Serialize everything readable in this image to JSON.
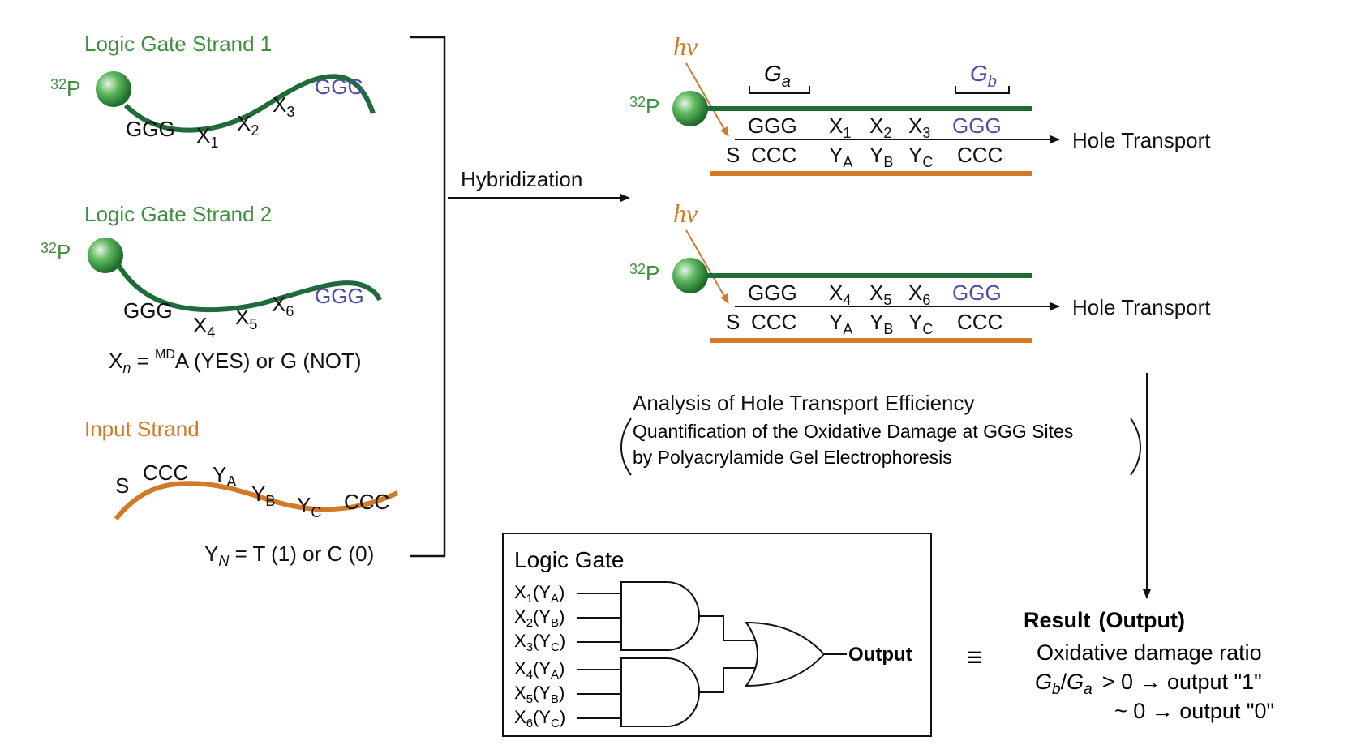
{
  "left": {
    "strand1": {
      "title": "Logic Gate Strand 1",
      "label32P": "32P",
      "seq": {
        "g_left": "GGG",
        "x1": "X1",
        "x2": "X2",
        "x3": "X3",
        "g_right": "GGG"
      }
    },
    "strand2": {
      "title": "Logic Gate Strand 2",
      "label32P": "32P",
      "seq": {
        "g_left": "GGG",
        "x4": "X4",
        "x5": "X5",
        "x6": "X6",
        "g_right": "GGG"
      }
    },
    "xn_def": {
      "pre": "X",
      "sub": "n",
      "eq": " = ",
      "sup": "MD",
      "post": "A (YES) or G (NOT)"
    },
    "input": {
      "title": "Input Strand",
      "seq": {
        "s": "S",
        "ccc_left": "CCC",
        "ya": "YA",
        "yb": "YB",
        "yc": "YC",
        "ccc_right": "CCC"
      }
    },
    "yn_def": {
      "pre": "Y",
      "sub": "N",
      "post": " = T (1) or C (0)"
    }
  },
  "hybridization": "Hybridization",
  "duplex1": {
    "hv": "hν",
    "label32P": "32P",
    "ga": {
      "main": "G",
      "sub": "a"
    },
    "gb": {
      "main": "G",
      "sub": "b"
    },
    "top": [
      "GGG",
      "X1",
      "X2",
      "X3",
      "GGG"
    ],
    "bottom": [
      "S",
      "CCC",
      "YA",
      "YB",
      "YC",
      "CCC"
    ],
    "transport": "Hole Transport"
  },
  "duplex2": {
    "hv": "hν",
    "label32P": "32P",
    "top": [
      "GGG",
      "X4",
      "X5",
      "X6",
      "GGG"
    ],
    "bottom": [
      "S",
      "CCC",
      "YA",
      "YB",
      "YC",
      "CCC"
    ],
    "transport": "Hole Transport"
  },
  "analysis": {
    "title": "Analysis of Hole Transport Efficiency",
    "line1": "Quantification of the Oxidative Damage at GGG Sites",
    "line2": "by Polyacrylamide Gel Electrophoresis"
  },
  "logic_gate": {
    "title": "Logic Gate",
    "inputs": [
      "X1(YA)",
      "X2(YB)",
      "X3(YC)",
      "X4(YA)",
      "X5(YB)",
      "X6(YC)"
    ],
    "output": "Output"
  },
  "equiv": "≡",
  "result": {
    "title": "Result",
    "title_paren": "(Output)",
    "line1": "Oxidative damage ratio",
    "ratio": "Gb/Ga",
    "cond1": "> 0 → output \"1\"",
    "cond2": "~ 0 → output \"0\""
  },
  "colors": {
    "green_strand": "#1f6b3a",
    "green_text": "#3e8f3e",
    "orange": "#d07a2a",
    "blue": "#4b4fa8"
  }
}
